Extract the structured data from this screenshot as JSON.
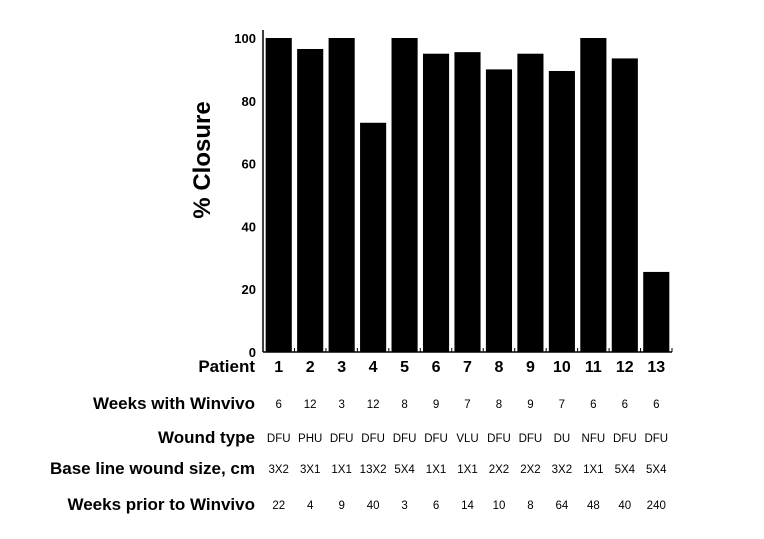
{
  "chart_data": {
    "type": "bar",
    "title": "",
    "xlabel": "Patient",
    "ylabel": "% Closure",
    "ylim": [
      0,
      100
    ],
    "yticks": [
      0,
      20,
      40,
      60,
      80,
      100
    ],
    "grid": false,
    "bar_color": "#000000",
    "categories": [
      "1",
      "2",
      "3",
      "4",
      "5",
      "6",
      "7",
      "8",
      "9",
      "10",
      "11",
      "12",
      "13"
    ],
    "values": [
      100,
      96.5,
      100,
      73,
      100,
      95,
      95.5,
      90,
      95,
      89.5,
      100,
      93.5,
      25.5
    ],
    "table": [
      {
        "label": "Weeks with Winvivo",
        "values": [
          "6",
          "12",
          "3",
          "12",
          "8",
          "9",
          "7",
          "8",
          "9",
          "7",
          "6",
          "6",
          "6"
        ]
      },
      {
        "label": "Wound type",
        "values": [
          "DFU",
          "PHU",
          "DFU",
          "DFU",
          "DFU",
          "DFU",
          "VLU",
          "DFU",
          "DFU",
          "DU",
          "NFU",
          "DFU",
          "DFU"
        ]
      },
      {
        "label": "Base line wound size, cm",
        "values": [
          "3X2",
          "3X1",
          "1X1",
          "13X2",
          "5X4",
          "1X1",
          "1X1",
          "2X2",
          "2X2",
          "3X2",
          "1X1",
          "5X4",
          "5X4"
        ]
      },
      {
        "label": "Weeks prior to Winvivo",
        "values": [
          "22",
          "4",
          "9",
          "40",
          "3",
          "6",
          "14",
          "10",
          "8",
          "64",
          "48",
          "40",
          "240"
        ]
      }
    ]
  }
}
